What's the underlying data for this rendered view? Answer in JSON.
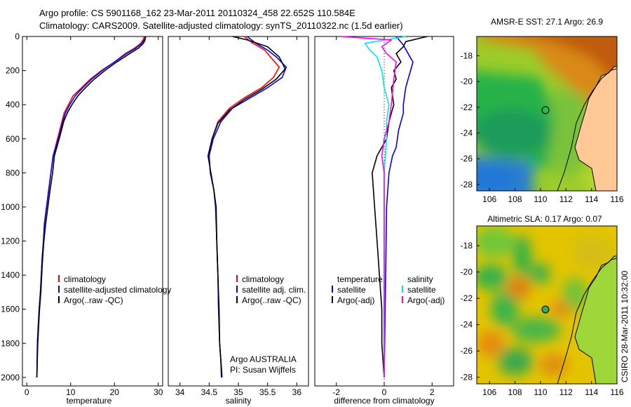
{
  "header": {
    "line1": "Argo profile: CS 5901168_162 23-Mar-2011 20110324_458 22.652S 110.584E",
    "line2": "Climatology: CARS2009. Satellite-adjusted climatology: synTS_20110322.nc (1.5d earlier)"
  },
  "footer": {
    "side_label": "CSIRO 28-Mar-2011 10:32:00",
    "argo_credit": "Argo AUSTRALIA",
    "pi_credit": "PI: Susan Wijffels"
  },
  "colors": {
    "climatology": "#ff0000",
    "satellite": "#0000ff",
    "argo": "#000000",
    "sal_satellite": "#00e5ee",
    "sal_argo": "#ff00ff"
  },
  "chart_data": [
    {
      "type": "line",
      "xlabel": "temperature",
      "ylabel": "",
      "xlim": [
        -1,
        31
      ],
      "ylim": [
        2050,
        0
      ],
      "xticks": [
        "0",
        "10",
        "20",
        "30"
      ],
      "yticks": [
        "0",
        "200",
        "400",
        "600",
        "800",
        "1000",
        "1200",
        "1400",
        "1600",
        "1800",
        "2000"
      ],
      "legend": [
        "climatology",
        "satellite-adjusted climatology",
        "Argo(..raw -QC)"
      ],
      "series": [
        {
          "name": "climatology",
          "color": "#ff0000",
          "x": [
            26.8,
            26.5,
            26.0,
            24.5,
            22.5,
            20.0,
            17.0,
            14.5,
            12.5,
            10.5,
            9.5,
            8.5,
            8.0,
            7.0,
            6.0,
            5.5,
            5.0,
            4.5,
            4.0,
            3.8,
            3.5,
            3.3,
            3.1,
            2.8,
            2.6,
            2.4,
            2.3
          ],
          "y": [
            0,
            20,
            40,
            70,
            100,
            150,
            200,
            250,
            300,
            350,
            400,
            450,
            500,
            600,
            700,
            800,
            900,
            1000,
            1100,
            1200,
            1300,
            1400,
            1500,
            1600,
            1700,
            1800,
            2000
          ]
        },
        {
          "name": "satellite-adjusted climatology",
          "color": "#0000ff",
          "x": [
            27.2,
            26.8,
            26.2,
            24.8,
            22.8,
            20.0,
            17.2,
            14.8,
            12.8,
            11.0,
            9.8,
            8.8,
            8.2,
            7.2,
            6.0,
            5.5,
            5.0,
            4.5,
            4.0,
            3.8,
            3.5,
            3.3,
            3.1,
            2.8,
            2.6,
            2.4,
            2.3
          ],
          "y": [
            0,
            20,
            40,
            70,
            100,
            150,
            200,
            250,
            300,
            350,
            400,
            450,
            500,
            600,
            700,
            800,
            900,
            1000,
            1100,
            1200,
            1300,
            1400,
            1500,
            1600,
            1700,
            1800,
            2000
          ]
        },
        {
          "name": "Argo(..raw -QC)",
          "color": "#000000",
          "x": [
            27.0,
            27.0,
            26.6,
            25.4,
            23.5,
            20.5,
            17.8,
            15.4,
            13.4,
            11.6,
            10.3,
            9.2,
            8.4,
            7.4,
            6.3,
            5.9,
            5.3,
            4.8,
            4.3,
            3.9,
            3.6,
            3.4,
            3.2,
            2.9,
            2.7,
            2.5,
            2.3
          ],
          "y": [
            0,
            20,
            40,
            70,
            100,
            150,
            200,
            250,
            300,
            350,
            400,
            450,
            500,
            600,
            700,
            800,
            900,
            1000,
            1100,
            1200,
            1300,
            1400,
            1500,
            1600,
            1700,
            1800,
            2000
          ]
        }
      ]
    },
    {
      "type": "line",
      "xlabel": "salinity",
      "xlim": [
        33.8,
        36.2
      ],
      "ylim": [
        2050,
        0
      ],
      "xticks": [
        "34",
        "34.5",
        "35",
        "35.5",
        "36"
      ],
      "legend": [
        "climatology",
        "satellite adj. clim.",
        "Argo(..raw -QC)"
      ],
      "series": [
        {
          "name": "climatology",
          "color": "#ff0000",
          "x": [
            35.1,
            35.25,
            35.45,
            35.55,
            35.7,
            35.6,
            35.4,
            35.1,
            34.85,
            34.65,
            34.55,
            34.5,
            34.52,
            34.58,
            34.61,
            34.63,
            34.65,
            34.66,
            34.68,
            34.7,
            34.72
          ],
          "y": [
            0,
            40,
            80,
            120,
            180,
            240,
            300,
            360,
            420,
            500,
            600,
            700,
            800,
            900,
            1000,
            1200,
            1400,
            1600,
            1800,
            1900,
            2000
          ]
        },
        {
          "name": "satellite adj. clim.",
          "color": "#0000ff",
          "x": [
            35.15,
            35.3,
            35.5,
            35.65,
            35.82,
            35.75,
            35.5,
            35.2,
            34.9,
            34.7,
            34.57,
            34.5,
            34.52,
            34.58,
            34.61,
            34.63,
            34.65,
            34.66,
            34.68,
            34.7,
            34.72
          ],
          "y": [
            0,
            40,
            80,
            120,
            180,
            240,
            300,
            360,
            420,
            500,
            600,
            700,
            800,
            900,
            1000,
            1200,
            1400,
            1600,
            1800,
            1900,
            2000
          ]
        },
        {
          "name": "Argo(..raw -QC)",
          "color": "#000000",
          "x": [
            34.9,
            35.15,
            35.5,
            35.7,
            35.8,
            35.65,
            35.4,
            35.1,
            34.85,
            34.65,
            34.55,
            34.48,
            34.53,
            34.58,
            34.62,
            34.63,
            34.65,
            34.67,
            34.68,
            34.7,
            34.71
          ],
          "y": [
            0,
            20,
            60,
            120,
            190,
            250,
            310,
            370,
            430,
            510,
            600,
            700,
            800,
            900,
            1000,
            1200,
            1400,
            1600,
            1800,
            1900,
            2000
          ]
        }
      ]
    },
    {
      "type": "line",
      "xlabel": "difference from climatology",
      "xlim": [
        -2.9,
        2.9
      ],
      "ylim": [
        2050,
        0
      ],
      "xticks": [
        "-2",
        "0",
        "2"
      ],
      "legend": [
        "temperature",
        "satellite",
        "Argo(-adj)",
        "salinity",
        "satellite",
        "Argo(-adj)"
      ],
      "series": [
        {
          "name": "temperature satellite",
          "color": "#0000ff",
          "x": [
            0.5,
            0.8,
            1.0,
            1.2,
            1.1,
            1.0,
            0.9,
            0.8,
            0.8,
            0.6,
            0.5,
            0.35,
            0.2,
            0.1,
            0.0
          ],
          "y": [
            0,
            50,
            100,
            150,
            200,
            250,
            300,
            400,
            450,
            550,
            650,
            700,
            800,
            1000,
            2000
          ]
        },
        {
          "name": "temperature Argo(-adj)",
          "color": "#000000",
          "x": [
            1.8,
            0.9,
            0.8,
            0.5,
            0.7,
            0.4,
            0.5,
            0.3,
            0.4,
            0.3,
            0.2,
            0.1,
            -0.3,
            -0.5,
            -0.4,
            -0.3,
            -0.2,
            -0.1,
            -0.1,
            0.0
          ],
          "y": [
            0,
            30,
            60,
            100,
            150,
            200,
            250,
            300,
            400,
            450,
            500,
            600,
            700,
            800,
            1000,
            1200,
            1400,
            1600,
            1800,
            2000
          ]
        },
        {
          "name": "salinity satellite",
          "color": "#00e5ee",
          "x": [
            0.9,
            -0.8,
            -0.6,
            -0.3,
            -0.1,
            0.0,
            0.2,
            0.1,
            0.1,
            0.0,
            0.0,
            0.0
          ],
          "y": [
            0,
            40,
            80,
            120,
            200,
            300,
            400,
            500,
            600,
            800,
            1200,
            2000
          ]
        },
        {
          "name": "salinity Argo(-adj)",
          "color": "#ff00ff",
          "x": [
            -1.8,
            0.3,
            -0.1,
            0.1,
            0.5,
            0.4,
            0.3,
            0.2,
            0.0,
            -0.1,
            0.0,
            0.0
          ],
          "y": [
            0,
            20,
            60,
            100,
            150,
            250,
            400,
            500,
            600,
            700,
            800,
            2000
          ]
        }
      ]
    },
    {
      "type": "heatmap",
      "title": "AMSR-E SST: 27.1 Argo: 26.9",
      "xlim": [
        105,
        116
      ],
      "ylim": [
        -28.5,
        -16.5
      ],
      "xticks": [
        "106",
        "108",
        "110",
        "112",
        "114",
        "116"
      ],
      "yticks": [
        "-18",
        "-20",
        "-22",
        "-24",
        "-26",
        "-28"
      ],
      "marker": {
        "lon": 110.584,
        "lat": -22.652
      }
    },
    {
      "type": "heatmap",
      "title": "Altimetric SLA: 0.17 Argo: 0.07",
      "xlim": [
        105,
        116
      ],
      "ylim": [
        -28.5,
        -16.5
      ],
      "xticks": [
        "106",
        "108",
        "110",
        "112",
        "114",
        "116"
      ],
      "yticks": [
        "-18",
        "-20",
        "-22",
        "-24",
        "-26",
        "-28"
      ],
      "marker": {
        "lon": 110.584,
        "lat": -22.652
      }
    }
  ]
}
